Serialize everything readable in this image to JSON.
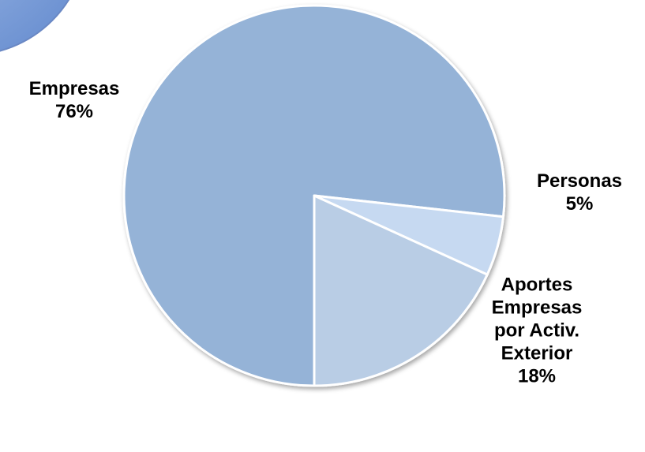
{
  "chart_data": {
    "type": "pie",
    "title": "",
    "slices": [
      {
        "label_lines": [
          "Empresas"
        ],
        "percent_label": "76%",
        "value": 76,
        "color": "#95b3d7"
      },
      {
        "label_lines": [
          "Personas"
        ],
        "percent_label": "5%",
        "value": 5,
        "color": "#c6d9f1"
      },
      {
        "label_lines": [
          "Aportes",
          "Empresas",
          "por Activ.",
          "Exterior"
        ],
        "percent_label": "18%",
        "value": 18,
        "color": "#b9cde5"
      }
    ],
    "slice_border_color": "#ffffff",
    "legend": "none",
    "data_labels": "outside"
  },
  "decoration": {
    "corner_shape_color": "#7fa3dc"
  }
}
